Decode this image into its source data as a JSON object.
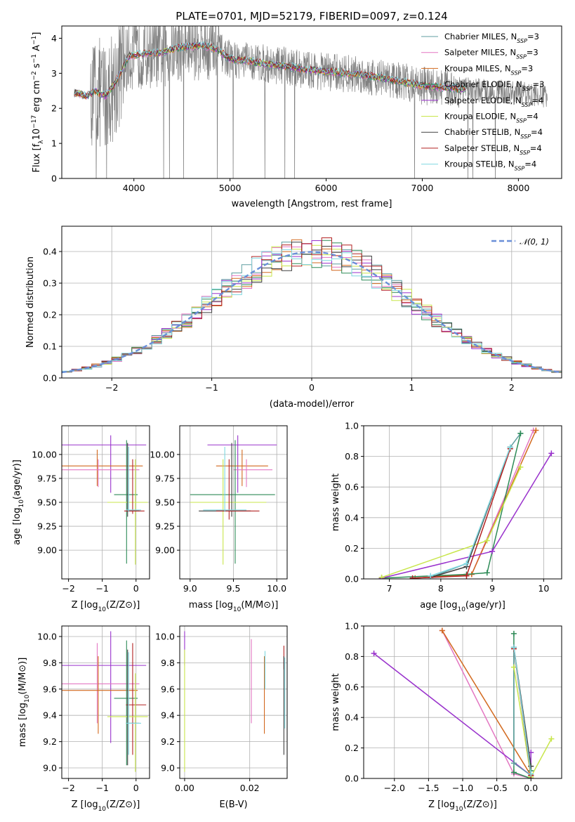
{
  "figure_title": "PLATE=0701, MJD=52179, FIBERID=0097, z=0.124",
  "colors": {
    "data": "#808080",
    "chabrier_miles": "#5f9ea0",
    "salpeter_miles": "#e377c2",
    "kroupa_miles": "#d2691e",
    "chabrier_elodie": "#2e8b57",
    "salpeter_elodie": "#9932cc",
    "kroupa_elodie": "#c8e64b",
    "chabrier_stelib": "#404040",
    "salpeter_stelib": "#b22222",
    "kroupa_stelib": "#7fd8e0",
    "gaussian": "#6a8fd8"
  },
  "chart_data": [
    {
      "type": "line",
      "title": "PLATE=0701, MJD=52179, FIBERID=0097, z=0.124",
      "xlabel": "wavelength [Angstrom, rest frame]",
      "ylabel": "Flux [f_λ10^{-17} erg cm^{-2} s^{-1} A^{-1}]",
      "xlim": [
        3250,
        8450
      ],
      "ylim": [
        0,
        4.35
      ],
      "xticks": [
        "4000",
        "5000",
        "6000",
        "7000",
        "8000"
      ],
      "yticks": [
        "0",
        "1",
        "2",
        "3",
        "4"
      ],
      "legend_position": "right",
      "series": [
        {
          "name": "Chabrier MILES, N_SSP=3",
          "color": "#5f9ea0"
        },
        {
          "name": "Salpeter MILES, N_SSP=3",
          "color": "#e377c2"
        },
        {
          "name": "Kroupa MILES, N_SSP=3",
          "color": "#d2691e"
        },
        {
          "name": "Chabrier ELODIE, N_SSP=3",
          "color": "#2e8b57"
        },
        {
          "name": "Salpeter ELODIE, N_SSP=4",
          "color": "#9932cc"
        },
        {
          "name": "Kroupa ELODIE, N_SSP=4",
          "color": "#c8e64b"
        },
        {
          "name": "Chabrier STELIB, N_SSP=4",
          "color": "#404040"
        },
        {
          "name": "Salpeter STELIB, N_SSP=4",
          "color": "#b22222"
        },
        {
          "name": "Kroupa STELIB, N_SSP=4",
          "color": "#7fd8e0"
        }
      ],
      "model_continuum": {
        "x": [
          3380,
          3500,
          3600,
          3700,
          3800,
          3950,
          4100,
          4300,
          4500,
          4700,
          4850,
          5000,
          5200,
          5400,
          5600,
          5800,
          6000,
          6200,
          6400,
          6600,
          6800,
          7000,
          7200,
          7400
        ],
        "y": [
          2.45,
          2.35,
          2.5,
          2.35,
          2.7,
          3.5,
          3.55,
          3.6,
          3.75,
          3.8,
          3.7,
          3.4,
          3.35,
          3.25,
          3.2,
          3.1,
          3.05,
          3.0,
          2.95,
          2.85,
          2.75,
          2.65,
          2.6,
          2.55
        ]
      }
    },
    {
      "type": "line",
      "xlabel": "(data-model)/error",
      "ylabel": "Normed distribution",
      "xlim": [
        -2.5,
        2.5
      ],
      "ylim": [
        0,
        0.48
      ],
      "xticks": [
        "−2",
        "−1",
        "0",
        "1",
        "2"
      ],
      "yticks": [
        "0.0",
        "0.1",
        "0.2",
        "0.3",
        "0.4"
      ],
      "grid": true,
      "legend_position": "top-right",
      "legend": "N(0, 1)"
    },
    {
      "type": "scatter",
      "xlabel": "Z [log10(Z/Z⊙)]",
      "ylabel": "age [log10(age/yr)]",
      "xlim": [
        -2.2,
        0.4
      ],
      "ylim": [
        8.7,
        10.3
      ],
      "xticks": [
        "−2",
        "−1",
        "0"
      ],
      "yticks": [
        "9.00",
        "9.25",
        "9.50",
        "9.75",
        "10.00"
      ],
      "grid": true
    },
    {
      "type": "scatter",
      "xlabel": "mass [log10(M/M⊙)]",
      "ylabel": "",
      "xlim": [
        8.88,
        10.12
      ],
      "ylim": [
        8.7,
        10.3
      ],
      "xticks": [
        "9.0",
        "9.5",
        "10.0"
      ],
      "yticks": [
        "9.00",
        "9.25",
        "9.50",
        "9.75",
        "10.00"
      ],
      "grid": true
    },
    {
      "type": "line",
      "xlabel": "age [log10(age/yr)]",
      "ylabel": "mass weight",
      "xlim": [
        6.5,
        10.35
      ],
      "ylim": [
        0,
        1.0
      ],
      "xticks": [
        "7",
        "8",
        "9",
        "10"
      ],
      "yticks": [
        "0.0",
        "0.2",
        "0.4",
        "0.6",
        "0.8",
        "1.0"
      ],
      "grid": true,
      "series": [
        {
          "color": "#5f9ea0",
          "x": [
            7.8,
            8.5,
            9.35,
            9.55
          ],
          "y": [
            0.01,
            0.1,
            0.86,
            0.95
          ]
        },
        {
          "color": "#e377c2",
          "x": [
            7.5,
            8.6,
            9.8
          ],
          "y": [
            0.005,
            0.03,
            0.97
          ]
        },
        {
          "color": "#d2691e",
          "x": [
            7.5,
            8.6,
            9.85
          ],
          "y": [
            0.005,
            0.03,
            0.97
          ]
        },
        {
          "color": "#2e8b57",
          "x": [
            6.85,
            8.5,
            8.9,
            9.55
          ],
          "y": [
            0.005,
            0.03,
            0.04,
            0.95
          ]
        },
        {
          "color": "#9932cc",
          "x": [
            6.85,
            9.0,
            10.15
          ],
          "y": [
            0.005,
            0.18,
            0.82
          ]
        },
        {
          "color": "#c8e64b",
          "x": [
            6.85,
            8.9,
            9.55
          ],
          "y": [
            0.01,
            0.25,
            0.73
          ]
        },
        {
          "color": "#404040",
          "x": [
            7.8,
            8.5,
            9.35
          ],
          "y": [
            0.01,
            0.08,
            0.86
          ]
        },
        {
          "color": "#b22222",
          "x": [
            7.45,
            8.5,
            9.35
          ],
          "y": [
            0.005,
            0.02,
            0.85
          ]
        },
        {
          "color": "#7fd8e0",
          "x": [
            7.8,
            8.5,
            9.35
          ],
          "y": [
            0.02,
            0.1,
            0.86
          ]
        }
      ]
    },
    {
      "type": "scatter",
      "xlabel": "Z [log10(Z/Z⊙)]",
      "ylabel": "mass [log10(M/M⊙)]",
      "xlim": [
        -2.2,
        0.4
      ],
      "ylim": [
        8.92,
        10.08
      ],
      "xticks": [
        "−2",
        "−1",
        "0"
      ],
      "yticks": [
        "9.0",
        "9.2",
        "9.4",
        "9.6",
        "9.8",
        "10.0"
      ],
      "grid": true
    },
    {
      "type": "scatter",
      "xlabel": "E(B-V)",
      "ylabel": "",
      "xlim": [
        -0.0015,
        0.0315
      ],
      "ylim": [
        8.92,
        10.08
      ],
      "xticks": [
        "0.00",
        "0.02"
      ],
      "yticks": [
        "9.0",
        "9.2",
        "9.4",
        "9.6",
        "9.8",
        "10.0"
      ],
      "grid": true
    },
    {
      "type": "line",
      "xlabel": "Z [log10(Z/Z⊙)]",
      "ylabel": "mass weight",
      "xlim": [
        -2.45,
        0.45
      ],
      "ylim": [
        0,
        1.0
      ],
      "xticks": [
        "−2.0",
        "−1.5",
        "−1.0",
        "−0.5",
        "0.0"
      ],
      "yticks": [
        "0.0",
        "0.2",
        "0.4",
        "0.6",
        "0.8",
        "1.0"
      ],
      "grid": true,
      "series": [
        {
          "color": "#e377c2",
          "x": [
            -1.3,
            -0.25,
            0.0
          ],
          "y": [
            0.97,
            0.03,
            0.0
          ]
        },
        {
          "color": "#d2691e",
          "x": [
            -1.3,
            0.0
          ],
          "y": [
            0.97,
            0.02
          ]
        },
        {
          "color": "#9932cc",
          "x": [
            -2.3,
            0.0,
            0.0
          ],
          "y": [
            0.82,
            0.02,
            0.17
          ]
        },
        {
          "color": "#2e8b57",
          "x": [
            -0.25,
            -0.25,
            0.0,
            0.0
          ],
          "y": [
            0.95,
            0.04,
            0.0,
            0.05
          ]
        },
        {
          "color": "#5f9ea0",
          "x": [
            -0.25,
            -0.25,
            0.0
          ],
          "y": [
            0.86,
            0.1,
            0.02
          ]
        },
        {
          "color": "#c8e64b",
          "x": [
            -0.25,
            0.0,
            0.3
          ],
          "y": [
            0.73,
            0.01,
            0.26
          ]
        },
        {
          "color": "#404040",
          "x": [
            -0.25,
            0.0
          ],
          "y": [
            0.86,
            0.08
          ]
        },
        {
          "color": "#b22222",
          "x": [
            -0.25,
            0.0
          ],
          "y": [
            0.85,
            0.02
          ]
        },
        {
          "color": "#7fd8e0",
          "x": [
            -0.25,
            0.0
          ],
          "y": [
            0.86,
            0.03
          ]
        }
      ]
    }
  ]
}
